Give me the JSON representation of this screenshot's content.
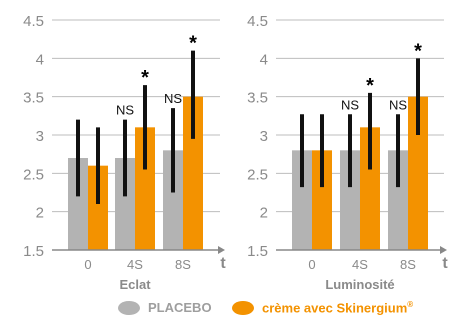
{
  "chart_data": [
    {
      "type": "bar",
      "xlabel": "Eclat",
      "ylabel": "",
      "axis_arrow_label": "t",
      "ylim": [
        1.5,
        4.5
      ],
      "yticks": [
        "1.5",
        "2",
        "2.5",
        "3",
        "3.5",
        "4",
        "4.5"
      ],
      "yticks_values": [
        1.5,
        2,
        2.5,
        3,
        3.5,
        4,
        4.5
      ],
      "categories": [
        "0",
        "4S",
        "8S"
      ],
      "series": [
        {
          "values": [
            2.7,
            2.7,
            2.8
          ],
          "err_low": [
            2.2,
            2.2,
            2.25
          ],
          "err_high": [
            3.2,
            3.2,
            3.35
          ]
        },
        {
          "values": [
            2.6,
            3.1,
            3.5
          ],
          "err_low": [
            2.1,
            2.55,
            2.95
          ],
          "err_high": [
            3.1,
            3.65,
            4.1
          ]
        }
      ],
      "annotations": [
        {
          "category": "4S",
          "series": 0,
          "text": "NS"
        },
        {
          "category": "4S",
          "series": 1,
          "text": "*"
        },
        {
          "category": "8S",
          "series": 0,
          "text": "NS"
        },
        {
          "category": "8S",
          "series": 1,
          "text": "*"
        }
      ]
    },
    {
      "type": "bar",
      "xlabel": "Luminosité",
      "ylabel": "",
      "axis_arrow_label": "t",
      "ylim": [
        1.5,
        4.5
      ],
      "yticks": [
        "1.5",
        "2",
        "2.5",
        "3",
        "3.5",
        "4",
        "4.5"
      ],
      "yticks_values": [
        1.5,
        2,
        2.5,
        3,
        3.5,
        4,
        4.5
      ],
      "categories": [
        "0",
        "4S",
        "8S"
      ],
      "series": [
        {
          "values": [
            2.8,
            2.8,
            2.8
          ],
          "err_low": [
            2.32,
            2.32,
            2.32
          ],
          "err_high": [
            3.27,
            3.27,
            3.27
          ]
        },
        {
          "values": [
            2.8,
            3.1,
            3.5
          ],
          "err_low": [
            2.32,
            2.55,
            3.0
          ],
          "err_high": [
            3.27,
            3.55,
            4.0
          ]
        }
      ],
      "annotations": [
        {
          "category": "4S",
          "series": 0,
          "text": "NS"
        },
        {
          "category": "4S",
          "series": 1,
          "text": "*"
        },
        {
          "category": "8S",
          "series": 0,
          "text": "NS"
        },
        {
          "category": "8S",
          "series": 1,
          "text": "*"
        }
      ]
    }
  ],
  "legend": [
    {
      "name": "PLACEBO",
      "color": "#b3b3b3",
      "text_color": "#9e9e9e",
      "text": "PLACEBO"
    },
    {
      "name": "crème avec Skinergium®",
      "color": "#f39200",
      "text_color": "#f39200",
      "text": "crème avec Skinergium",
      "sup": "®"
    }
  ],
  "colors": {
    "placebo": "#b3b3b3",
    "cream": "#f39200",
    "error_bar": "#111111",
    "grid": "#bdbdbd",
    "axis_text": "#8a8a8a",
    "axis": "#888888"
  }
}
